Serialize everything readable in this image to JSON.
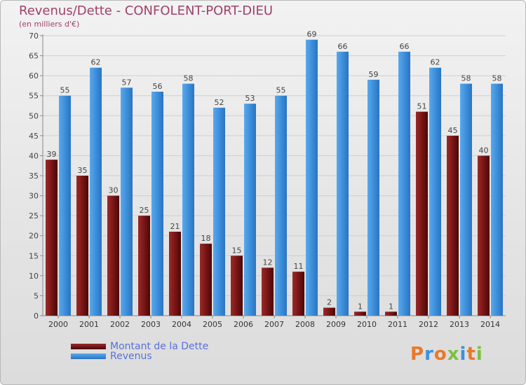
{
  "header": {
    "title": "Revenus/Dette - CONFOLENT-PORT-DIEU",
    "subtitle": "(en milliers d'€)"
  },
  "legend": {
    "items": [
      {
        "label": "Montant de la Dette",
        "color": "#7a1515"
      },
      {
        "label": "Revenus",
        "color": "#3d8fdb"
      }
    ]
  },
  "logo": {
    "text": "Proxiti"
  },
  "chart_data": {
    "type": "bar",
    "categories": [
      "2000",
      "2001",
      "2002",
      "2003",
      "2004",
      "2005",
      "2006",
      "2007",
      "2008",
      "2009",
      "2010",
      "2011",
      "2012",
      "2013",
      "2014"
    ],
    "series": [
      {
        "name": "Montant de la Dette",
        "color": "#7a1515",
        "values": [
          39,
          35,
          30,
          25,
          21,
          18,
          15,
          12,
          11,
          2,
          1,
          1,
          51,
          45,
          40
        ]
      },
      {
        "name": "Revenus",
        "color": "#3d8fdb",
        "values": [
          55,
          62,
          57,
          56,
          58,
          52,
          53,
          55,
          69,
          66,
          59,
          66,
          62,
          58,
          58
        ]
      }
    ],
    "title": "Revenus/Dette - CONFOLENT-PORT-DIEU",
    "subtitle": "(en milliers d'€)",
    "ylim": [
      0,
      70
    ],
    "yticks": [
      0,
      5,
      10,
      15,
      20,
      25,
      30,
      35,
      40,
      45,
      50,
      55,
      60,
      65,
      70
    ],
    "grid": true,
    "data_labels": true,
    "legend_position": "bottom-left"
  }
}
